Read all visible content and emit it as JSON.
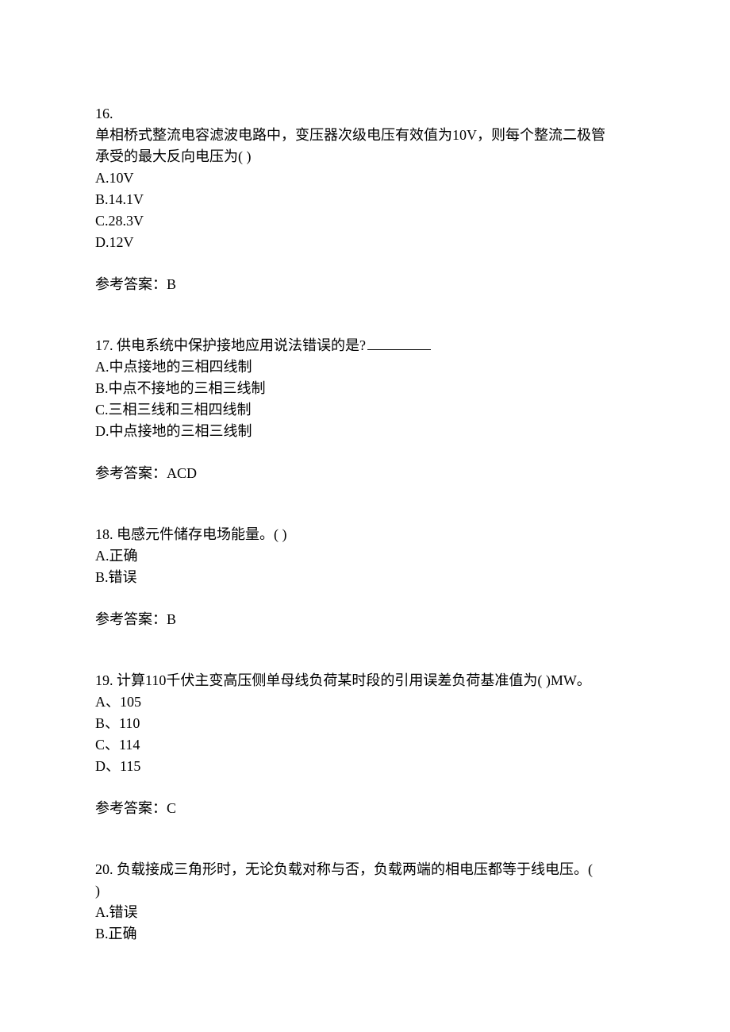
{
  "questions": [
    {
      "number": "16.",
      "stem_line1": "单相桥式整流电容滤波电路中，变压器次级电压有效值为10V，则每个整流二极管",
      "stem_line2": "承受的最大反向电压为(  )",
      "options": [
        "A.10V",
        "B.14.1V",
        "C.28.3V",
        "D.12V"
      ],
      "answer_label": "参考答案：B"
    },
    {
      "number": "17. ",
      "stem": "供电系统中保护接地应用说法错误的是?",
      "has_blank": true,
      "options": [
        "A.中点接地的三相四线制",
        "B.中点不接地的三相三线制",
        "C.三相三线和三相四线制",
        "D.中点接地的三相三线制"
      ],
      "answer_label": "参考答案：ACD"
    },
    {
      "number": "18. ",
      "stem": "电感元件储存电场能量。(  )",
      "options": [
        "A.正确",
        "B.错误"
      ],
      "answer_label": "参考答案：B"
    },
    {
      "number": "19. ",
      "stem": "计算110千伏主变高压侧单母线负荷某时段的引用误差负荷基准值为(  )MW。",
      "options": [
        "A、105",
        "B、110",
        "C、114",
        "D、115"
      ],
      "answer_label": "参考答案：C"
    },
    {
      "number": "20. ",
      "stem_line1": "负载接成三角形时，无论负载对称与否，负载两端的相电压都等于线电压。( ",
      "stem_line2": " )",
      "options": [
        "A.错误",
        "B.正确"
      ],
      "answer_label": ""
    }
  ]
}
